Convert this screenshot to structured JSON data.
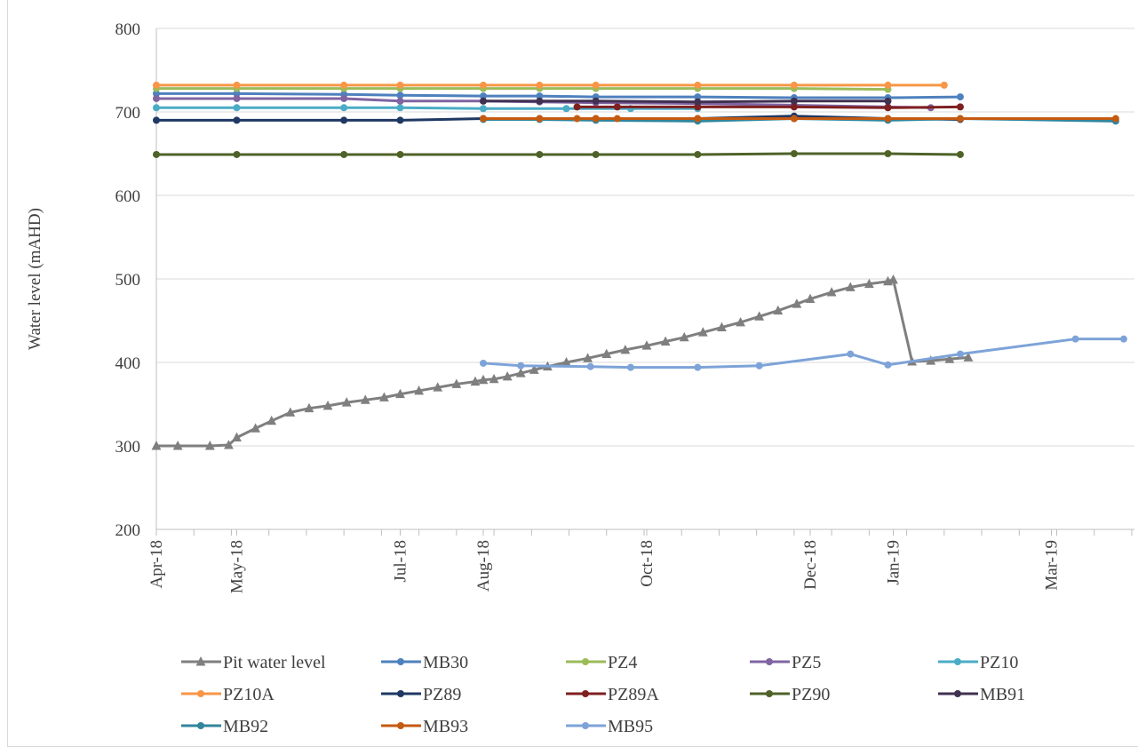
{
  "chart_data": {
    "type": "line",
    "title": "",
    "xlabel": "",
    "ylabel": "Water level (mAHD)",
    "ylim": [
      200,
      800
    ],
    "yticks": [
      200,
      300,
      400,
      500,
      600,
      700,
      800
    ],
    "xlim": [
      "2018-04-01",
      "2019-04-01"
    ],
    "xticks": [
      {
        "date": "2018-04-01",
        "label": "Apr-18"
      },
      {
        "date": "2018-05-01",
        "label": "May-18"
      },
      {
        "date": "2018-07-01",
        "label": "Jul-18"
      },
      {
        "date": "2018-08-01",
        "label": "Aug-18"
      },
      {
        "date": "2018-10-01",
        "label": "Oct-18"
      },
      {
        "date": "2018-12-01",
        "label": "Dec-18"
      },
      {
        "date": "2019-01-01",
        "label": "Jan-19"
      },
      {
        "date": "2019-03-01",
        "label": "Mar-19"
      }
    ],
    "grid": "horizontal",
    "legend_position": "bottom",
    "series": [
      {
        "name": "Pit water level",
        "color": "#7f7f7f",
        "marker": "triangle",
        "points": [
          [
            "2018-04-01",
            300
          ],
          [
            "2018-04-09",
            300
          ],
          [
            "2018-04-21",
            300
          ],
          [
            "2018-04-28",
            301
          ],
          [
            "2018-05-01",
            310
          ],
          [
            "2018-05-08",
            321
          ],
          [
            "2018-05-14",
            330
          ],
          [
            "2018-05-21",
            340
          ],
          [
            "2018-05-28",
            345
          ],
          [
            "2018-06-04",
            348
          ],
          [
            "2018-06-11",
            352
          ],
          [
            "2018-06-18",
            355
          ],
          [
            "2018-06-25",
            358
          ],
          [
            "2018-07-01",
            362
          ],
          [
            "2018-07-08",
            366
          ],
          [
            "2018-07-15",
            370
          ],
          [
            "2018-07-22",
            374
          ],
          [
            "2018-07-29",
            377
          ],
          [
            "2018-08-01",
            379
          ],
          [
            "2018-08-05",
            380
          ],
          [
            "2018-08-10",
            383
          ],
          [
            "2018-08-15",
            387
          ],
          [
            "2018-08-20",
            391
          ],
          [
            "2018-08-25",
            395
          ],
          [
            "2018-09-01",
            400
          ],
          [
            "2018-09-09",
            405
          ],
          [
            "2018-09-16",
            410
          ],
          [
            "2018-09-23",
            415
          ],
          [
            "2018-10-01",
            420
          ],
          [
            "2018-10-08",
            425
          ],
          [
            "2018-10-15",
            430
          ],
          [
            "2018-10-22",
            436
          ],
          [
            "2018-10-29",
            442
          ],
          [
            "2018-11-05",
            448
          ],
          [
            "2018-11-12",
            455
          ],
          [
            "2018-11-19",
            462
          ],
          [
            "2018-11-26",
            470
          ],
          [
            "2018-12-01",
            476
          ],
          [
            "2018-12-09",
            484
          ],
          [
            "2018-12-16",
            490
          ],
          [
            "2018-12-23",
            494
          ],
          [
            "2018-12-30",
            497
          ],
          [
            "2019-01-01",
            499
          ],
          [
            "2019-01-08",
            401
          ],
          [
            "2019-01-15",
            402
          ],
          [
            "2019-01-22",
            404
          ],
          [
            "2019-01-29",
            406
          ]
        ]
      },
      {
        "name": "MB30",
        "color": "#4e81bd",
        "points": [
          [
            "2018-04-01",
            722
          ],
          [
            "2018-05-01",
            722
          ],
          [
            "2018-06-10",
            721
          ],
          [
            "2018-07-01",
            720
          ],
          [
            "2018-08-01",
            719
          ],
          [
            "2018-08-22",
            719
          ],
          [
            "2018-09-12",
            718
          ],
          [
            "2018-10-20",
            718
          ],
          [
            "2018-11-25",
            717
          ],
          [
            "2018-12-30",
            717
          ],
          [
            "2019-01-26",
            718
          ]
        ]
      },
      {
        "name": "PZ4",
        "color": "#9bbb59",
        "points": [
          [
            "2018-04-01",
            728
          ],
          [
            "2018-05-01",
            728
          ],
          [
            "2018-06-10",
            728
          ],
          [
            "2018-07-01",
            728
          ],
          [
            "2018-08-01",
            728
          ],
          [
            "2018-08-22",
            728
          ],
          [
            "2018-09-12",
            728
          ],
          [
            "2018-10-20",
            728
          ],
          [
            "2018-11-25",
            728
          ],
          [
            "2018-12-30",
            727
          ]
        ]
      },
      {
        "name": "PZ5",
        "color": "#8064a2",
        "points": [
          [
            "2018-04-01",
            716
          ],
          [
            "2018-05-01",
            716
          ],
          [
            "2018-06-10",
            716
          ],
          [
            "2018-07-01",
            713
          ],
          [
            "2018-08-01",
            713
          ],
          [
            "2018-08-22",
            712
          ],
          [
            "2018-09-12",
            711
          ],
          [
            "2018-10-20",
            710
          ],
          [
            "2018-11-25",
            708
          ],
          [
            "2018-12-30",
            706
          ],
          [
            "2019-01-15",
            705
          ]
        ]
      },
      {
        "name": "PZ10",
        "color": "#4bacc6",
        "points": [
          [
            "2018-04-01",
            705
          ],
          [
            "2018-05-01",
            705
          ],
          [
            "2018-06-10",
            705
          ],
          [
            "2018-07-01",
            705
          ],
          [
            "2018-08-01",
            704
          ],
          [
            "2018-09-01",
            704
          ],
          [
            "2018-09-25",
            704
          ],
          [
            "2018-10-20",
            704
          ]
        ]
      },
      {
        "name": "PZ10A",
        "color": "#f79646",
        "points": [
          [
            "2018-04-01",
            732
          ],
          [
            "2018-05-01",
            732
          ],
          [
            "2018-06-10",
            732
          ],
          [
            "2018-07-01",
            732
          ],
          [
            "2018-08-01",
            732
          ],
          [
            "2018-08-22",
            732
          ],
          [
            "2018-09-12",
            732
          ],
          [
            "2018-10-20",
            732
          ],
          [
            "2018-11-25",
            732
          ],
          [
            "2018-12-30",
            732
          ],
          [
            "2019-01-20",
            732
          ]
        ]
      },
      {
        "name": "PZ89",
        "color": "#1f3864",
        "points": [
          [
            "2018-04-01",
            690
          ],
          [
            "2018-05-01",
            690
          ],
          [
            "2018-06-10",
            690
          ],
          [
            "2018-07-01",
            690
          ],
          [
            "2018-08-01",
            692
          ],
          [
            "2018-08-22",
            692
          ],
          [
            "2018-09-12",
            692
          ],
          [
            "2018-10-20",
            692
          ],
          [
            "2018-11-25",
            695
          ],
          [
            "2018-12-30",
            692
          ],
          [
            "2019-01-26",
            691
          ]
        ]
      },
      {
        "name": "PZ89A",
        "color": "#7f2020",
        "points": [
          [
            "2018-09-05",
            706
          ],
          [
            "2018-09-20",
            706
          ],
          [
            "2018-10-20",
            706
          ],
          [
            "2018-11-25",
            706
          ],
          [
            "2018-12-30",
            705
          ],
          [
            "2019-01-26",
            706
          ]
        ]
      },
      {
        "name": "PZ90",
        "color": "#4f6228",
        "points": [
          [
            "2018-04-01",
            649
          ],
          [
            "2018-05-01",
            649
          ],
          [
            "2018-06-10",
            649
          ],
          [
            "2018-07-01",
            649
          ],
          [
            "2018-08-22",
            649
          ],
          [
            "2018-09-12",
            649
          ],
          [
            "2018-10-20",
            649
          ],
          [
            "2018-11-25",
            650
          ],
          [
            "2018-12-30",
            650
          ],
          [
            "2019-01-26",
            649
          ]
        ]
      },
      {
        "name": "MB91",
        "color": "#403151",
        "points": [
          [
            "2018-08-01",
            713
          ],
          [
            "2018-08-22",
            713
          ],
          [
            "2018-09-12",
            713
          ],
          [
            "2018-10-20",
            712
          ],
          [
            "2018-11-25",
            713
          ],
          [
            "2018-12-30",
            713
          ]
        ]
      },
      {
        "name": "MB92",
        "color": "#31859c",
        "points": [
          [
            "2018-08-01",
            691
          ],
          [
            "2018-08-22",
            691
          ],
          [
            "2018-09-12",
            690
          ],
          [
            "2018-10-20",
            689
          ],
          [
            "2018-11-25",
            692
          ],
          [
            "2018-12-30",
            690
          ],
          [
            "2019-01-26",
            692
          ],
          [
            "2019-03-25",
            689
          ]
        ]
      },
      {
        "name": "MB93",
        "color": "#c55a11",
        "points": [
          [
            "2018-08-01",
            692
          ],
          [
            "2018-08-22",
            692
          ],
          [
            "2018-09-05",
            692
          ],
          [
            "2018-09-12",
            692
          ],
          [
            "2018-09-20",
            692
          ],
          [
            "2018-10-20",
            692
          ],
          [
            "2018-11-25",
            692
          ],
          [
            "2018-12-30",
            692
          ],
          [
            "2019-01-26",
            692
          ],
          [
            "2019-03-25",
            692
          ]
        ]
      },
      {
        "name": "MB95",
        "color": "#7da3d8",
        "points": [
          [
            "2018-08-01",
            399
          ],
          [
            "2018-08-15",
            396
          ],
          [
            "2018-09-10",
            395
          ],
          [
            "2018-09-25",
            394
          ],
          [
            "2018-10-20",
            394
          ],
          [
            "2018-11-12",
            396
          ],
          [
            "2018-12-16",
            410
          ],
          [
            "2018-12-30",
            397
          ],
          [
            "2019-01-26",
            410
          ],
          [
            "2019-03-10",
            428
          ],
          [
            "2019-03-28",
            428
          ]
        ]
      }
    ]
  }
}
